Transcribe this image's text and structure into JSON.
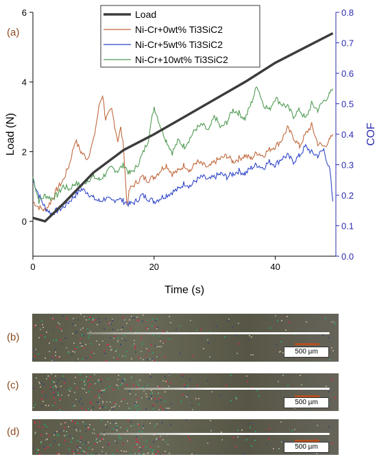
{
  "chart_data": {
    "type": "line",
    "xlabel": "Time (s)",
    "ylabel_left": "Load (N)",
    "ylabel_right": "COF",
    "xlim": [
      0,
      50
    ],
    "ylim_left": [
      -1,
      6
    ],
    "ylim_right": [
      0.0,
      0.8
    ],
    "x_ticks": [
      0,
      20,
      40
    ],
    "y_left_ticks": [
      0,
      2,
      4,
      6
    ],
    "y_right_ticks": [
      "0.0",
      "0.1",
      "0.2",
      "0.3",
      "0.4",
      "0.5",
      "0.6",
      "0.7",
      "0.8"
    ],
    "panel_label": "(a)",
    "legend_position": "top-center",
    "load_series": {
      "name": "Load",
      "color": "#3c3c3c",
      "x": [
        0,
        2,
        5,
        10,
        15,
        20,
        25,
        30,
        35,
        40,
        45,
        49.5
      ],
      "y": [
        0.1,
        0.0,
        0.5,
        1.4,
        2.05,
        2.5,
        3.0,
        3.5,
        4.0,
        4.55,
        5.0,
        5.4
      ]
    },
    "series": [
      {
        "name": "Ni-Cr+0wt% Ti3SiC2",
        "color": "#c0683c",
        "x": [
          0,
          1,
          2,
          3,
          4,
          5,
          6,
          7,
          8,
          9,
          10,
          11,
          11.5,
          12,
          13,
          14,
          14.5,
          15,
          15.5,
          16,
          17,
          18,
          19,
          20,
          21,
          22,
          23,
          24,
          25,
          26,
          27,
          28,
          29,
          30,
          31,
          32,
          33,
          34,
          35,
          36,
          37,
          38,
          39,
          40,
          41,
          42,
          43,
          44,
          45,
          46,
          47,
          48,
          49,
          49.5
        ],
        "y": [
          0.18,
          0.16,
          0.15,
          0.18,
          0.22,
          0.25,
          0.3,
          0.38,
          0.34,
          0.32,
          0.38,
          0.5,
          0.53,
          0.45,
          0.48,
          0.38,
          0.42,
          0.35,
          0.17,
          0.22,
          0.24,
          0.26,
          0.25,
          0.26,
          0.28,
          0.3,
          0.27,
          0.28,
          0.3,
          0.28,
          0.31,
          0.3,
          0.29,
          0.31,
          0.32,
          0.33,
          0.31,
          0.32,
          0.33,
          0.32,
          0.34,
          0.33,
          0.35,
          0.36,
          0.38,
          0.42,
          0.39,
          0.36,
          0.4,
          0.43,
          0.37,
          0.36,
          0.38,
          0.4
        ]
      },
      {
        "name": "Ni-Cr+5wt% Ti3SiC2",
        "color": "#2f45c8",
        "x": [
          0,
          1,
          2,
          3,
          4,
          5,
          6,
          7,
          8,
          9,
          10,
          11,
          12,
          13,
          14,
          15,
          16,
          17,
          18,
          19,
          20,
          21,
          22,
          23,
          24,
          25,
          26,
          27,
          28,
          29,
          30,
          31,
          32,
          33,
          34,
          35,
          36,
          37,
          38,
          39,
          40,
          41,
          42,
          43,
          44,
          45,
          46,
          47,
          48,
          49,
          49.5
        ],
        "y": [
          0.25,
          0.2,
          0.16,
          0.14,
          0.15,
          0.16,
          0.18,
          0.2,
          0.22,
          0.21,
          0.19,
          0.18,
          0.19,
          0.18,
          0.19,
          0.18,
          0.17,
          0.18,
          0.2,
          0.19,
          0.18,
          0.19,
          0.2,
          0.21,
          0.22,
          0.24,
          0.23,
          0.25,
          0.26,
          0.25,
          0.26,
          0.27,
          0.26,
          0.27,
          0.28,
          0.27,
          0.29,
          0.3,
          0.29,
          0.31,
          0.3,
          0.32,
          0.33,
          0.31,
          0.33,
          0.36,
          0.34,
          0.33,
          0.35,
          0.28,
          0.18
        ]
      },
      {
        "name": "Ni-Cr+10wt% Ti3SiC2",
        "color": "#4f9a52",
        "x": [
          0,
          1,
          2,
          3,
          4,
          5,
          6,
          7,
          8,
          9,
          10,
          11,
          12,
          13,
          14,
          15,
          16,
          17,
          18,
          19,
          20,
          21,
          22,
          23,
          24,
          25,
          26,
          27,
          28,
          29,
          30,
          31,
          32,
          33,
          34,
          35,
          36,
          37,
          38,
          39,
          40,
          41,
          42,
          43,
          44,
          45,
          46,
          47,
          48,
          49,
          49.5
        ],
        "y": [
          0.26,
          0.18,
          0.2,
          0.19,
          0.2,
          0.23,
          0.22,
          0.24,
          0.23,
          0.25,
          0.26,
          0.25,
          0.27,
          0.29,
          0.28,
          0.3,
          0.27,
          0.29,
          0.33,
          0.38,
          0.49,
          0.43,
          0.38,
          0.34,
          0.38,
          0.36,
          0.39,
          0.42,
          0.43,
          0.41,
          0.46,
          0.42,
          0.44,
          0.48,
          0.47,
          0.45,
          0.5,
          0.56,
          0.5,
          0.48,
          0.52,
          0.5,
          0.49,
          0.46,
          0.48,
          0.45,
          0.5,
          0.48,
          0.51,
          0.53,
          0.55
        ]
      }
    ]
  },
  "micrographs": [
    {
      "label": "(b)",
      "scale": "500 µm",
      "track_start": 0.18,
      "track_end": 0.97
    },
    {
      "label": "(c)",
      "scale": "500 µm",
      "track_start": 0.3,
      "track_end": 0.97
    },
    {
      "label": "(d)",
      "scale": "500 µm",
      "track_start": 0.22,
      "track_end": 0.97
    }
  ]
}
